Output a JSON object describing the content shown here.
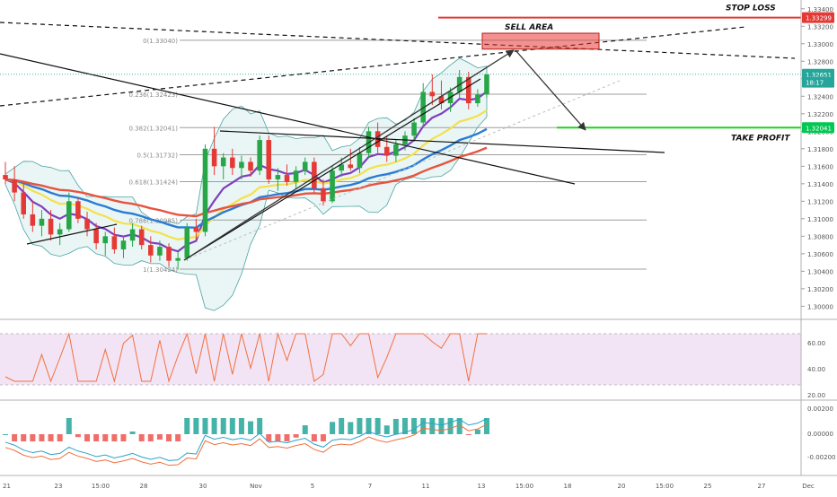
{
  "chart_data": {
    "type": "candlestick",
    "instrument_note": "",
    "price_axis": {
      "ticks": [
        1.3,
        1.302,
        1.304,
        1.306,
        1.308,
        1.31,
        1.312,
        1.314,
        1.316,
        1.318,
        1.32,
        1.322,
        1.324,
        1.326,
        1.328,
        1.33,
        1.332,
        1.334
      ],
      "tick_labels": [
        "1.30000",
        "1.30200",
        "1.30400",
        "1.30600",
        "1.30800",
        "1.31000",
        "1.31200",
        "1.31400",
        "1.31600",
        "1.31800",
        "1.32000",
        "1.32200",
        "1.32400",
        "1.32600",
        "1.32800",
        "1.33000",
        "1.33200",
        "1.33400"
      ],
      "range": [
        1.2985,
        1.335
      ],
      "badges": [
        {
          "label": "1.33299",
          "value": 1.33299,
          "color": "#e53935"
        },
        {
          "label": "1.32651",
          "value": 1.32651,
          "color": "#26a69a"
        },
        {
          "label": "18:17",
          "value": 1.3256,
          "color": "#26a69a"
        },
        {
          "label": "1.32041",
          "value": 1.32041,
          "color": "#00c853"
        }
      ]
    },
    "time_axis": {
      "labels": [
        "21",
        "23",
        "15:00",
        "28",
        "30",
        "Nov",
        "5",
        "7",
        "11",
        "13",
        "15:00",
        "18",
        "20",
        "15:00",
        "25",
        "27",
        "Dec"
      ]
    },
    "annotations": {
      "stop_loss": "STOP LOSS",
      "sell_area": "SELL AREA",
      "take_profit": "TAKE PROFIT",
      "stop_loss_price": 1.33299,
      "take_profit_price": 1.32041,
      "sell_area_range": [
        1.33,
        1.331
      ]
    },
    "fibonacci": [
      {
        "label": "0(1.33040)",
        "level": 0,
        "value": 1.3304
      },
      {
        "label": "0.236(1.32423)",
        "level": 0.236,
        "value": 1.32423
      },
      {
        "label": "0.382(1.32041)",
        "level": 0.382,
        "value": 1.32041
      },
      {
        "label": "0.5(1.31732)",
        "level": 0.5,
        "value": 1.31732
      },
      {
        "label": "0.618(1.31424)",
        "level": 0.618,
        "value": 1.31424
      },
      {
        "label": "0.786(1.30985)",
        "level": 0.786,
        "value": 1.30985
      },
      {
        "label": "1(1.30424)",
        "level": 1,
        "value": 1.30424
      }
    ],
    "candles": [
      {
        "o": 1.315,
        "h": 1.3165,
        "l": 1.314,
        "c": 1.3145
      },
      {
        "o": 1.3145,
        "h": 1.316,
        "l": 1.312,
        "c": 1.313
      },
      {
        "o": 1.313,
        "h": 1.314,
        "l": 1.31,
        "c": 1.3105
      },
      {
        "o": 1.3105,
        "h": 1.312,
        "l": 1.3085,
        "c": 1.3092
      },
      {
        "o": 1.3092,
        "h": 1.311,
        "l": 1.308,
        "c": 1.31
      },
      {
        "o": 1.31,
        "h": 1.311,
        "l": 1.3075,
        "c": 1.3082
      },
      {
        "o": 1.3082,
        "h": 1.3095,
        "l": 1.307,
        "c": 1.3088
      },
      {
        "o": 1.3088,
        "h": 1.313,
        "l": 1.3085,
        "c": 1.312
      },
      {
        "o": 1.312,
        "h": 1.3125,
        "l": 1.3095,
        "c": 1.31
      },
      {
        "o": 1.31,
        "h": 1.3108,
        "l": 1.308,
        "c": 1.3088
      },
      {
        "o": 1.3088,
        "h": 1.3095,
        "l": 1.3065,
        "c": 1.3072
      },
      {
        "o": 1.3072,
        "h": 1.3085,
        "l": 1.3058,
        "c": 1.308
      },
      {
        "o": 1.308,
        "h": 1.309,
        "l": 1.306,
        "c": 1.3065
      },
      {
        "o": 1.3065,
        "h": 1.308,
        "l": 1.3055,
        "c": 1.3075
      },
      {
        "o": 1.3075,
        "h": 1.3095,
        "l": 1.3068,
        "c": 1.3088
      },
      {
        "o": 1.3088,
        "h": 1.3092,
        "l": 1.3065,
        "c": 1.307
      },
      {
        "o": 1.307,
        "h": 1.308,
        "l": 1.305,
        "c": 1.3058
      },
      {
        "o": 1.3058,
        "h": 1.3075,
        "l": 1.3052,
        "c": 1.3068
      },
      {
        "o": 1.3068,
        "h": 1.3072,
        "l": 1.3045,
        "c": 1.3052
      },
      {
        "o": 1.3052,
        "h": 1.3062,
        "l": 1.3042,
        "c": 1.3055
      },
      {
        "o": 1.3055,
        "h": 1.3095,
        "l": 1.3052,
        "c": 1.309
      },
      {
        "o": 1.309,
        "h": 1.31,
        "l": 1.3075,
        "c": 1.3085
      },
      {
        "o": 1.3085,
        "h": 1.3185,
        "l": 1.308,
        "c": 1.318
      },
      {
        "o": 1.318,
        "h": 1.3205,
        "l": 1.315,
        "c": 1.316
      },
      {
        "o": 1.316,
        "h": 1.3175,
        "l": 1.3145,
        "c": 1.317
      },
      {
        "o": 1.317,
        "h": 1.318,
        "l": 1.315,
        "c": 1.3158
      },
      {
        "o": 1.3158,
        "h": 1.3172,
        "l": 1.3145,
        "c": 1.3165
      },
      {
        "o": 1.3165,
        "h": 1.317,
        "l": 1.3148,
        "c": 1.3155
      },
      {
        "o": 1.3155,
        "h": 1.3195,
        "l": 1.315,
        "c": 1.319
      },
      {
        "o": 1.319,
        "h": 1.3195,
        "l": 1.314,
        "c": 1.3145
      },
      {
        "o": 1.3145,
        "h": 1.3158,
        "l": 1.3132,
        "c": 1.315
      },
      {
        "o": 1.315,
        "h": 1.3162,
        "l": 1.3138,
        "c": 1.3142
      },
      {
        "o": 1.3142,
        "h": 1.316,
        "l": 1.3135,
        "c": 1.3155
      },
      {
        "o": 1.3155,
        "h": 1.317,
        "l": 1.315,
        "c": 1.3165
      },
      {
        "o": 1.3165,
        "h": 1.317,
        "l": 1.313,
        "c": 1.3135
      },
      {
        "o": 1.3135,
        "h": 1.3145,
        "l": 1.3115,
        "c": 1.312
      },
      {
        "o": 1.312,
        "h": 1.316,
        "l": 1.3118,
        "c": 1.3155
      },
      {
        "o": 1.3155,
        "h": 1.317,
        "l": 1.3148,
        "c": 1.3162
      },
      {
        "o": 1.3162,
        "h": 1.318,
        "l": 1.3155,
        "c": 1.3158
      },
      {
        "o": 1.3158,
        "h": 1.3182,
        "l": 1.3152,
        "c": 1.3175
      },
      {
        "o": 1.3175,
        "h": 1.3205,
        "l": 1.317,
        "c": 1.32
      },
      {
        "o": 1.32,
        "h": 1.321,
        "l": 1.3175,
        "c": 1.3182
      },
      {
        "o": 1.3182,
        "h": 1.3195,
        "l": 1.3165,
        "c": 1.3172
      },
      {
        "o": 1.3172,
        "h": 1.319,
        "l": 1.3165,
        "c": 1.3185
      },
      {
        "o": 1.3185,
        "h": 1.32,
        "l": 1.3178,
        "c": 1.3195
      },
      {
        "o": 1.3195,
        "h": 1.3215,
        "l": 1.3188,
        "c": 1.321
      },
      {
        "o": 1.321,
        "h": 1.3255,
        "l": 1.3205,
        "c": 1.3245
      },
      {
        "o": 1.3245,
        "h": 1.3265,
        "l": 1.323,
        "c": 1.324
      },
      {
        "o": 1.324,
        "h": 1.3258,
        "l": 1.3225,
        "c": 1.3232
      },
      {
        "o": 1.3232,
        "h": 1.325,
        "l": 1.3222,
        "c": 1.3245
      },
      {
        "o": 1.3245,
        "h": 1.327,
        "l": 1.3238,
        "c": 1.3262
      },
      {
        "o": 1.3262,
        "h": 1.3268,
        "l": 1.3225,
        "c": 1.3232
      },
      {
        "o": 1.3232,
        "h": 1.3248,
        "l": 1.3228,
        "c": 1.3242
      },
      {
        "o": 1.3242,
        "h": 1.3265,
        "l": 1.3238,
        "c": 1.3265
      }
    ],
    "indicators": {
      "rsi": {
        "levels": [
          70,
          30
        ],
        "tick_labels": [
          "60.00",
          "40.00",
          "20.00"
        ]
      },
      "macd": {
        "tick_labels": [
          "0.00200",
          "0.00000",
          "-0.00200"
        ]
      }
    }
  }
}
